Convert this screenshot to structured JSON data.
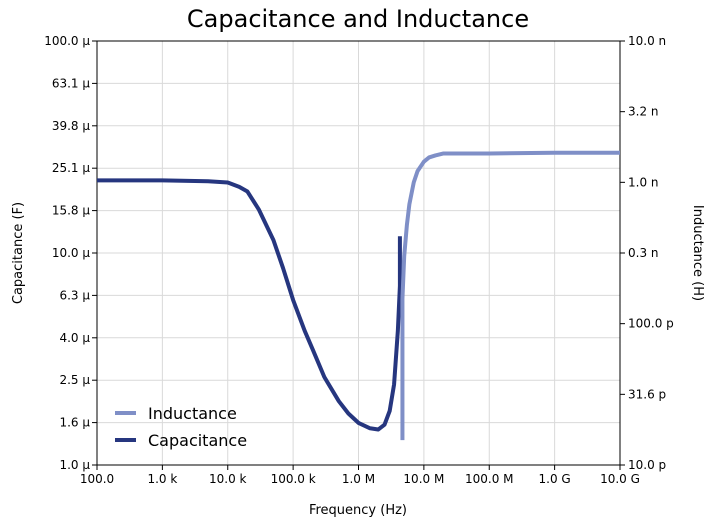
{
  "chart_data": {
    "type": "line",
    "title": "Capacitance and Inductance",
    "xlabel": "Frequency (Hz)",
    "ylabel_left": "Capacitance (F)",
    "ylabel_right": "Inductance (H)",
    "x_scale": "log",
    "xlim": [
      100,
      10000000000
    ],
    "ylim_left": [
      1e-06,
      0.0001
    ],
    "ylim_right": [
      1e-11,
      1e-08
    ],
    "grid": true,
    "legend_position": "bottom-left",
    "x_ticks": [
      {
        "value": 100,
        "label": "100.0"
      },
      {
        "value": 1000,
        "label": "1.0 k"
      },
      {
        "value": 10000,
        "label": "10.0 k"
      },
      {
        "value": 100000,
        "label": "100.0 k"
      },
      {
        "value": 1000000,
        "label": "1.0 M"
      },
      {
        "value": 10000000,
        "label": "10.0 M"
      },
      {
        "value": 100000000,
        "label": "100.0 M"
      },
      {
        "value": 1000000000,
        "label": "1.0 G"
      },
      {
        "value": 10000000000,
        "label": "10.0 G"
      }
    ],
    "y_left_ticks": [
      {
        "value": 1e-06,
        "label": "1.0 µ"
      },
      {
        "value": 1.585e-06,
        "label": "1.6 µ"
      },
      {
        "value": 2.512e-06,
        "label": "2.5 µ"
      },
      {
        "value": 3.981e-06,
        "label": "4.0 µ"
      },
      {
        "value": 6.31e-06,
        "label": "6.3 µ"
      },
      {
        "value": 1e-05,
        "label": "10.0 µ"
      },
      {
        "value": 1.585e-05,
        "label": "15.8 µ"
      },
      {
        "value": 2.512e-05,
        "label": "25.1 µ"
      },
      {
        "value": 3.981e-05,
        "label": "39.8 µ"
      },
      {
        "value": 6.31e-05,
        "label": "63.1 µ"
      },
      {
        "value": 0.0001,
        "label": "100.0 µ"
      }
    ],
    "y_right_ticks": [
      {
        "value": 1e-11,
        "label": "10.0 p"
      },
      {
        "value": 3.162e-11,
        "label": "31.6 p"
      },
      {
        "value": 1e-10,
        "label": "100.0 p"
      },
      {
        "value": 3.162e-10,
        "label": "0.3 n"
      },
      {
        "value": 1e-09,
        "label": "1.0 n"
      },
      {
        "value": 3.162e-09,
        "label": "3.2 n"
      },
      {
        "value": 1e-08,
        "label": "10.0 n"
      }
    ],
    "series": [
      {
        "name": "Capacitance",
        "axis": "left",
        "color": "#26367f",
        "x": [
          100,
          1000,
          5000,
          10000,
          15000,
          20000,
          30000,
          50000,
          70000,
          100000,
          150000,
          200000,
          300000,
          500000,
          700000,
          1000000,
          1500000,
          2000000,
          2500000,
          3000000,
          3500000,
          4000000,
          4300000,
          4300000
        ],
        "y": [
          2.2e-05,
          2.2e-05,
          2.18e-05,
          2.15e-05,
          2.05e-05,
          1.95e-05,
          1.6e-05,
          1.15e-05,
          8.5e-06,
          6e-06,
          4.3e-06,
          3.5e-06,
          2.6e-06,
          2e-06,
          1.75e-06,
          1.58e-06,
          1.49e-06,
          1.47e-06,
          1.55e-06,
          1.8e-06,
          2.4e-06,
          4.3e-06,
          7e-06,
          1.2e-05
        ]
      },
      {
        "name": "Inductance",
        "axis": "right",
        "color": "#7f8fc7",
        "x": [
          4700000,
          4700000,
          5000000,
          5500000,
          6000000,
          7000000,
          8000000,
          10000000,
          12000000,
          15000000,
          20000000,
          30000000,
          100000000,
          1000000000,
          10000000000
        ],
        "y": [
          1.5e-11,
          1.5e-10,
          3e-10,
          5e-10,
          7e-10,
          1e-09,
          1.2e-09,
          1.4e-09,
          1.5e-09,
          1.55e-09,
          1.6e-09,
          1.6e-09,
          1.6e-09,
          1.62e-09,
          1.62e-09
        ]
      }
    ]
  }
}
